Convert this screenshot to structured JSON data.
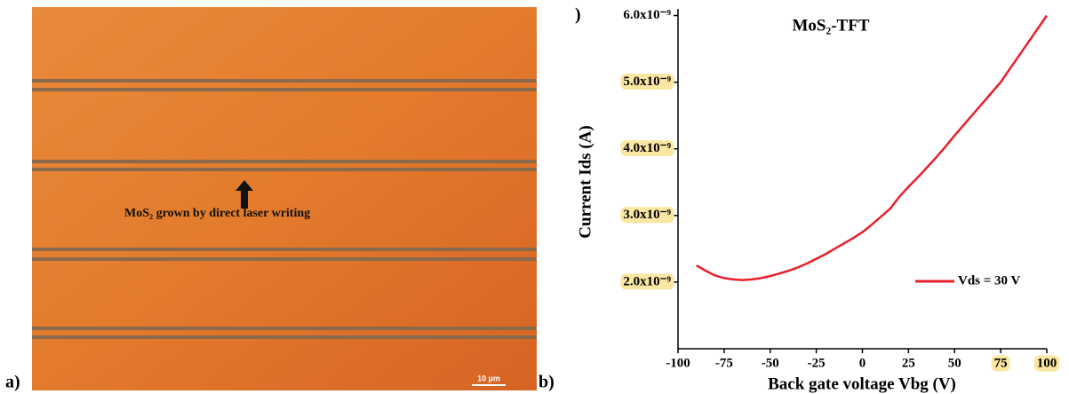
{
  "image": {
    "panel_label": "a)",
    "annotation": "MoS₂ grown by direct laser writing",
    "scale_bar": "10 µm"
  },
  "panel_label": "b)",
  "fragment": ")",
  "chart_data": {
    "type": "line",
    "title": "MoS₂-TFT",
    "x_label": "Back gate voltage Vbg (V)",
    "y_label": "Current Ids (A)",
    "xlim": [
      -100,
      100
    ],
    "xticks": [
      -100,
      -75,
      -50,
      -25,
      0,
      25,
      50,
      {
        "value": 75,
        "label": "75",
        "highlight": true
      },
      {
        "value": 100,
        "label": "100",
        "highlight": true
      }
    ],
    "ylim": [
      1e-09,
      6.1e-09
    ],
    "yticks": [
      {
        "value": 2e-09,
        "label": "2.0x10⁻⁹",
        "highlight": true
      },
      {
        "value": 3e-09,
        "label": "3.0x10⁻⁹",
        "highlight": true
      },
      {
        "value": 4e-09,
        "label": "4.0x10⁻⁹",
        "highlight": true
      },
      {
        "value": 5e-09,
        "label": "5.0x10⁻⁹",
        "highlight": true
      },
      {
        "value": 6e-09,
        "label": "6.0x10⁻⁹"
      }
    ],
    "highlight_color": "#fbe6a2",
    "x": [
      -90,
      -85,
      -80,
      -75,
      -70,
      -65,
      -60,
      -55,
      -50,
      -45,
      -40,
      -35,
      -30,
      -25,
      -20,
      -15,
      -10,
      -5,
      0,
      5,
      10,
      15,
      20,
      25,
      30,
      35,
      40,
      45,
      50,
      55,
      60,
      65,
      70,
      75,
      80,
      85,
      90,
      95,
      100
    ],
    "series": [
      {
        "name": "Vds = 30 V",
        "color": "#e8202a",
        "values": [
          2.25e-09,
          2.17e-09,
          2.1e-09,
          2.06e-09,
          2.04e-09,
          2.03e-09,
          2.04e-09,
          2.06e-09,
          2.09e-09,
          2.13e-09,
          2.17e-09,
          2.22e-09,
          2.28e-09,
          2.35e-09,
          2.42e-09,
          2.5e-09,
          2.58e-09,
          2.66e-09,
          2.75e-09,
          2.86e-09,
          2.98e-09,
          3.1e-09,
          3.28e-09,
          3.43e-09,
          3.57e-09,
          3.72e-09,
          3.87e-09,
          4.03e-09,
          4.2e-09,
          4.36e-09,
          4.52e-09,
          4.68e-09,
          4.84e-09,
          5e-09,
          5.2e-09,
          5.4e-09,
          5.6e-09,
          5.8e-09,
          6e-09
        ]
      }
    ]
  }
}
